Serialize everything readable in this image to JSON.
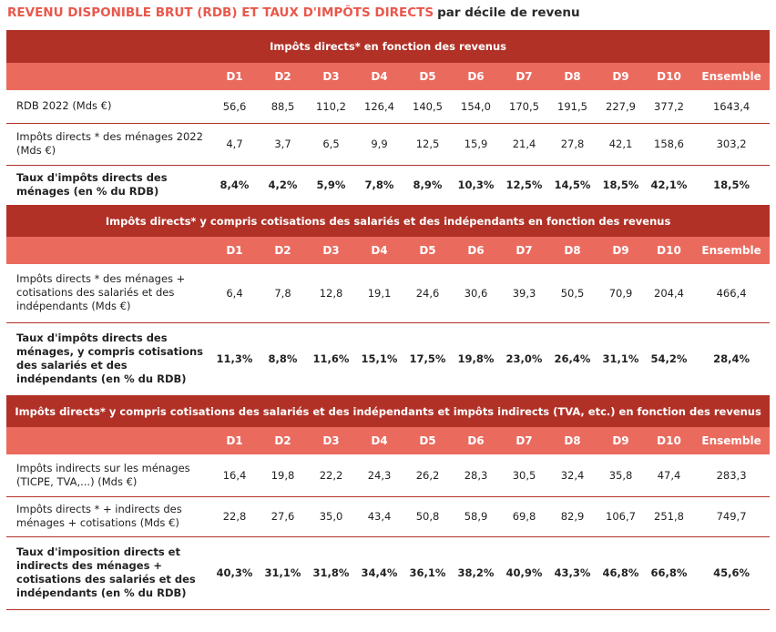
{
  "title": {
    "main": "REVENU DISPONIBLE BRUT (RDB) ET TAUX D'IMPÔTS DIRECTS",
    "sub": "par décile de revenu"
  },
  "columns": [
    "D1",
    "D2",
    "D3",
    "D4",
    "D5",
    "D6",
    "D7",
    "D8",
    "D9",
    "D10",
    "Ensemble"
  ],
  "sections": [
    {
      "title": "Impôts directs* en fonction des revenus",
      "rows": [
        {
          "label": "RDB 2022 (Mds €)",
          "values": [
            "56,6",
            "88,5",
            "110,2",
            "126,4",
            "140,5",
            "154,0",
            "170,5",
            "191,5",
            "227,9",
            "377,2",
            "1643,4"
          ]
        },
        {
          "label": "Impôts directs * des ménages 2022 (Mds €)",
          "values": [
            "4,7",
            "3,7",
            "6,5",
            "9,9",
            "12,5",
            "15,9",
            "21,4",
            "27,8",
            "42,1",
            "158,6",
            "303,2"
          ]
        },
        {
          "label": "Taux d'impôts directs des ménages (en % du RDB)",
          "values": [
            "8,4%",
            "4,2%",
            "5,9%",
            "7,8%",
            "8,9%",
            "10,3%",
            "12,5%",
            "14,5%",
            "18,5%",
            "42,1%",
            "18,5%"
          ]
        }
      ]
    },
    {
      "title": "Impôts directs* y compris cotisations des salariés et des indépendants en fonction des revenus",
      "rows": [
        {
          "label": "Impôts directs * des ménages + cotisations des salariés et des indépendants (Mds €)",
          "values": [
            "6,4",
            "7,8",
            "12,8",
            "19,1",
            "24,6",
            "30,6",
            "39,3",
            "50,5",
            "70,9",
            "204,4",
            "466,4"
          ]
        },
        {
          "label": "Taux d'impôts directs des ménages, y compris cotisations des salariés et des indépendants (en % du RDB)",
          "values": [
            "11,3%",
            "8,8%",
            "11,6%",
            "15,1%",
            "17,5%",
            "19,8%",
            "23,0%",
            "26,4%",
            "31,1%",
            "54,2%",
            "28,4%"
          ]
        }
      ]
    },
    {
      "title": "Impôts directs* y compris cotisations des salariés et des indépendants et impôts indirects (TVA, etc.) en fonction des revenus",
      "rows": [
        {
          "label": "Impôts indirects sur les ménages (TICPE, TVA,...) (Mds €)",
          "values": [
            "16,4",
            "19,8",
            "22,2",
            "24,3",
            "26,2",
            "28,3",
            "30,5",
            "32,4",
            "35,8",
            "47,4",
            "283,3"
          ]
        },
        {
          "label": "Impôts directs * + indirects des ménages + cotisations (Mds €)",
          "values": [
            "22,8",
            "27,6",
            "35,0",
            "43,4",
            "50,8",
            "58,9",
            "69,8",
            "82,9",
            "106,7",
            "251,8",
            "749,7"
          ]
        },
        {
          "label": "Taux d'imposition directs et indirects des ménages + cotisations des salariés et des indépendants (en % du RDB)",
          "values": [
            "40,3%",
            "31,1%",
            "31,8%",
            "34,4%",
            "36,1%",
            "38,2%",
            "40,9%",
            "43,3%",
            "46,8%",
            "66,8%",
            "45,6%"
          ]
        }
      ]
    }
  ]
}
